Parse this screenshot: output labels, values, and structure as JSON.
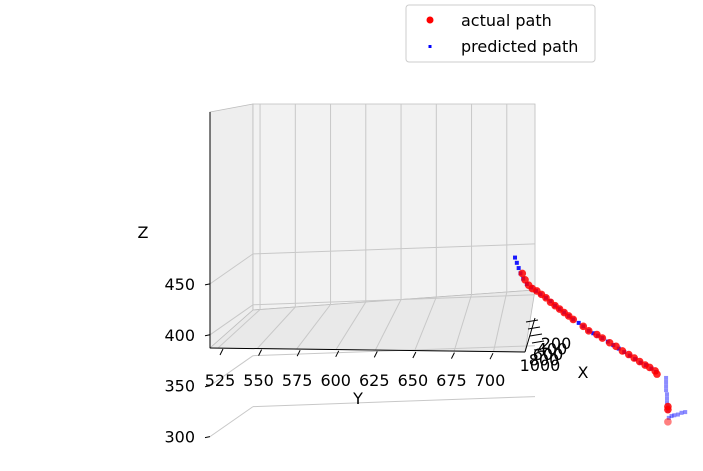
{
  "chart_data": {
    "type": "scatter",
    "projection": "3d",
    "grid": true,
    "legend_position": "top-right",
    "xlabel": "X",
    "ylabel": "Y",
    "zlabel": "Z",
    "y_ticks": [
      "525",
      "550",
      "575",
      "600",
      "625",
      "650",
      "675",
      "700"
    ],
    "z_ticks": [
      "300",
      "350",
      "400",
      "450"
    ],
    "x_ticks": [
      "200",
      "400",
      "600",
      "800",
      "1000"
    ],
    "x_tick_display": [
      "200",
      "400",
      "600",
      "800",
      "1000"
    ],
    "ylim": [
      520,
      720
    ],
    "zlim": [
      270,
      500
    ],
    "series": [
      {
        "name": "actual path",
        "color": "#ff0000",
        "marker": "circle",
        "points": [
          {
            "y": 530,
            "z": 461
          },
          {
            "y": 533,
            "z": 455
          },
          {
            "y": 537,
            "z": 450
          },
          {
            "y": 541,
            "z": 447
          },
          {
            "y": 546,
            "z": 445
          },
          {
            "y": 551,
            "z": 442
          },
          {
            "y": 556,
            "z": 439
          },
          {
            "y": 561,
            "z": 435
          },
          {
            "y": 566,
            "z": 432
          },
          {
            "y": 571,
            "z": 429
          },
          {
            "y": 576,
            "z": 426
          },
          {
            "y": 581,
            "z": 423
          },
          {
            "y": 586,
            "z": 420
          },
          {
            "y": 597,
            "z": 414
          },
          {
            "y": 603,
            "z": 410
          },
          {
            "y": 612,
            "z": 407
          },
          {
            "y": 618,
            "z": 404
          },
          {
            "y": 626,
            "z": 400
          },
          {
            "y": 633,
            "z": 397
          },
          {
            "y": 640,
            "z": 393
          },
          {
            "y": 647,
            "z": 390
          },
          {
            "y": 653,
            "z": 387
          },
          {
            "y": 659,
            "z": 384
          },
          {
            "y": 665,
            "z": 381
          },
          {
            "y": 670,
            "z": 379
          },
          {
            "y": 676,
            "z": 376
          },
          {
            "y": 678,
            "z": 373
          },
          {
            "y": 690,
            "z": 342
          },
          {
            "y": 690,
            "z": 339
          },
          {
            "y": 690,
            "z": 327
          }
        ]
      },
      {
        "name": "predicted path",
        "color": "#0000ff",
        "marker": "square",
        "points": [
          {
            "y": 522,
            "z": 476
          },
          {
            "y": 524,
            "z": 471
          },
          {
            "y": 526,
            "z": 466
          },
          {
            "y": 528,
            "z": 461
          },
          {
            "y": 531,
            "z": 456
          },
          {
            "y": 535,
            "z": 451
          },
          {
            "y": 540,
            "z": 448
          },
          {
            "y": 545,
            "z": 445
          },
          {
            "y": 550,
            "z": 442
          },
          {
            "y": 556,
            "z": 439
          },
          {
            "y": 561,
            "z": 436
          },
          {
            "y": 566,
            "z": 432
          },
          {
            "y": 571,
            "z": 429
          },
          {
            "y": 576,
            "z": 426
          },
          {
            "y": 581,
            "z": 423
          },
          {
            "y": 586,
            "z": 420
          },
          {
            "y": 592,
            "z": 417
          },
          {
            "y": 597,
            "z": 414
          },
          {
            "y": 603,
            "z": 410
          },
          {
            "y": 608,
            "z": 408
          },
          {
            "y": 613,
            "z": 406
          },
          {
            "y": 618,
            "z": 404
          },
          {
            "y": 624,
            "z": 401
          },
          {
            "y": 630,
            "z": 398
          },
          {
            "y": 636,
            "z": 395
          },
          {
            "y": 642,
            "z": 392
          },
          {
            "y": 648,
            "z": 389
          },
          {
            "y": 654,
            "z": 386
          },
          {
            "y": 660,
            "z": 383
          },
          {
            "y": 666,
            "z": 381
          },
          {
            "y": 672,
            "z": 378
          },
          {
            "y": 677,
            "z": 375
          },
          {
            "y": 688,
            "z": 370
          },
          {
            "y": 688,
            "z": 366
          },
          {
            "y": 688,
            "z": 362
          },
          {
            "y": 688,
            "z": 358
          },
          {
            "y": 689,
            "z": 354
          },
          {
            "y": 689,
            "z": 350
          },
          {
            "y": 689,
            "z": 346
          },
          {
            "y": 690,
            "z": 342
          },
          {
            "y": 690,
            "z": 338
          },
          {
            "y": 691,
            "z": 331
          },
          {
            "y": 694,
            "z": 333
          },
          {
            "y": 697,
            "z": 334
          },
          {
            "y": 701,
            "z": 335
          },
          {
            "y": 705,
            "z": 337
          },
          {
            "y": 709,
            "z": 338
          }
        ]
      }
    ]
  }
}
